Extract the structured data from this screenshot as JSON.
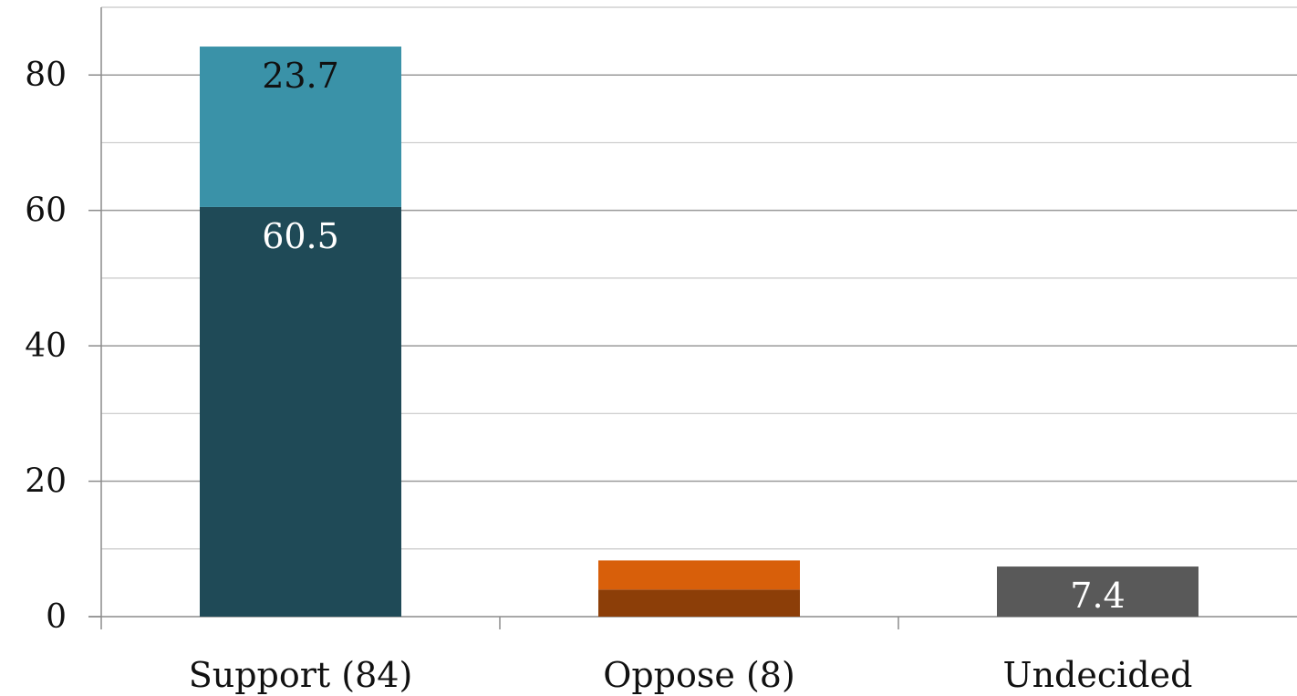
{
  "chart_data": {
    "type": "bar",
    "stacked": true,
    "categories": [
      "Support (84)",
      "Oppose (8)",
      "Undecided"
    ],
    "series": [
      {
        "values": [
          60.5,
          4.0,
          7.4
        ],
        "colors": [
          "#1f4a57",
          "#8c3e08",
          "#595959"
        ],
        "labels": [
          "60.5",
          "",
          "7.4"
        ]
      },
      {
        "values": [
          23.7,
          4.3,
          0
        ],
        "colors": [
          "#3a92a8",
          "#d85f0a",
          "#595959"
        ],
        "labels": [
          "23.7",
          "",
          ""
        ]
      }
    ],
    "y_ticks": [
      "0",
      "20",
      "40",
      "60",
      "80"
    ],
    "ylim": [
      0,
      90
    ],
    "grid": true,
    "label_colors": {
      "dark": "#ffffff",
      "light": "#111111"
    }
  }
}
